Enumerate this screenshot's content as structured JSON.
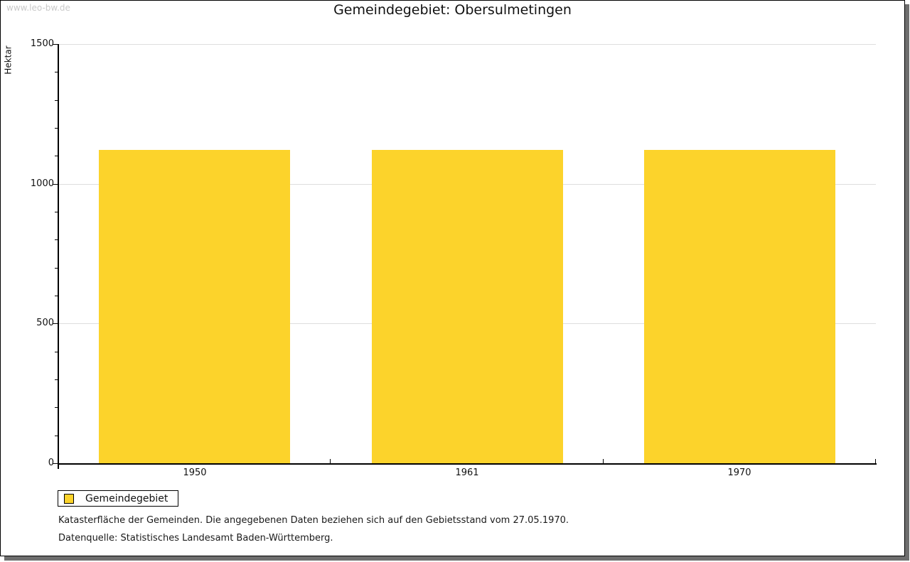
{
  "watermark": "www.leo-bw.de",
  "title": "Gemeindegebiet: Obersulmetingen",
  "y_axis_title": "Hektar",
  "legend": {
    "label": "Gemeindegebiet"
  },
  "footnotes": [
    "Katasterfläche der Gemeinden. Die angegebenen Daten beziehen sich auf den Gebietsstand vom 27.05.1970.",
    "Datenquelle: Statistisches Landesamt Baden-Württemberg."
  ],
  "colors": {
    "bar": "#fcd32b",
    "gridline": "#dedede",
    "axis": "#000000",
    "watermark": "#c9c9c9",
    "frame_shadow": "#6e6e6e"
  },
  "chart_data": {
    "type": "bar",
    "title": "Gemeindegebiet: Obersulmetingen",
    "categories": [
      "1950",
      "1961",
      "1970"
    ],
    "series": [
      {
        "name": "Gemeindegebiet",
        "values": [
          1120,
          1120,
          1120
        ]
      }
    ],
    "xlabel": "",
    "ylabel": "Hektar",
    "ylim": [
      0,
      1500
    ],
    "y_major_ticks": [
      0,
      500,
      1000,
      1500
    ],
    "y_minor_step": 100,
    "grid": true,
    "legend_position": "bottom-left",
    "bar_color": "#fcd32b"
  }
}
